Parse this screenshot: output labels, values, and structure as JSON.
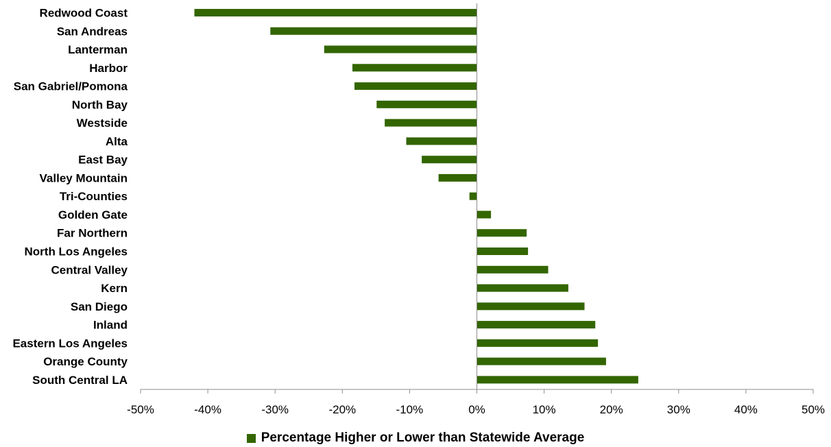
{
  "chart_data": {
    "type": "bar",
    "orientation": "horizontal",
    "categories": [
      "Redwood Coast",
      "San Andreas",
      "Lanterman",
      "Harbor",
      "San Gabriel/Pomona",
      "North Bay",
      "Westside",
      "Alta",
      "East Bay",
      "Valley Mountain",
      "Tri-Counties",
      "Golden Gate",
      "Far Northern",
      "North Los Angeles",
      "Central Valley",
      "Kern",
      "San Diego",
      "Inland",
      "Eastern Los Angeles",
      "Orange County",
      "South Central LA"
    ],
    "series": [
      {
        "name": "Percentage Higher or Lower than Statewide Average",
        "color": "#336600",
        "values": [
          -42,
          -30.7,
          -22.7,
          -18.5,
          -18.2,
          -14.9,
          -13.7,
          -10.5,
          -8.2,
          -5.7,
          -1.1,
          2.1,
          7.4,
          7.6,
          10.6,
          13.6,
          16,
          17.6,
          18,
          19.2,
          24
        ]
      }
    ],
    "xlim": [
      -50,
      50
    ],
    "xticks": [
      -50,
      -40,
      -30,
      -20,
      -10,
      0,
      10,
      20,
      30,
      40,
      50
    ],
    "tick_labels": [
      "-50%",
      "-40%",
      "-30%",
      "-20%",
      "-10%",
      "0%",
      "10%",
      "20%",
      "30%",
      "40%",
      "50%"
    ],
    "grid": false,
    "legend_position": "bottom",
    "title": "",
    "xlabel": "",
    "ylabel": ""
  }
}
